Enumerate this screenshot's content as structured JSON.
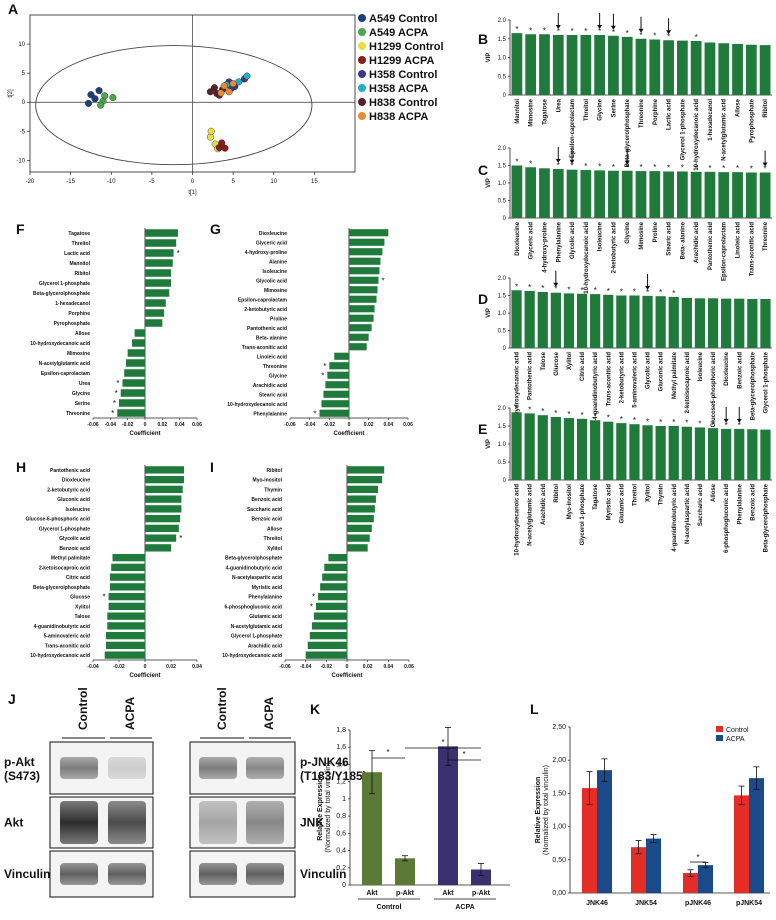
{
  "panel_labels": [
    "A",
    "B",
    "C",
    "D",
    "E",
    "F",
    "G",
    "H",
    "I",
    "J",
    "K",
    "L"
  ],
  "chart_data": [
    {
      "panel": "A",
      "type": "scatter",
      "xlabel": "t[1]",
      "ylabel": "t[2]",
      "xlim": [
        -20,
        20
      ],
      "ylim": [
        -12,
        15
      ],
      "xticks": [
        "-20",
        "-15",
        "-10",
        "-5",
        "0",
        "5",
        "10",
        "15"
      ],
      "yticks": [
        "-10",
        "-5",
        "0",
        "5",
        "10"
      ],
      "legend_position": "right",
      "series": [
        {
          "name": "A549 Control",
          "color": "#1b3f7a",
          "points": [
            [
              -12.5,
              1.3
            ],
            [
              -12,
              0.6
            ],
            [
              -11.5,
              2
            ],
            [
              -12.8,
              -0.2
            ]
          ]
        },
        {
          "name": "A549 ACPA",
          "color": "#4ca84a",
          "points": [
            [
              -11,
              0.2
            ],
            [
              -9.8,
              0.8
            ],
            [
              -11.3,
              -0.5
            ],
            [
              -10.8,
              1.1
            ]
          ]
        },
        {
          "name": "H1299 Control",
          "color": "#e8e040",
          "points": [
            [
              2.2,
              -6
            ],
            [
              2.8,
              -7.2
            ],
            [
              2.3,
              -5
            ],
            [
              3.1,
              -8
            ]
          ]
        },
        {
          "name": "H1299 ACPA",
          "color": "#8a1c1c",
          "points": [
            [
              3.3,
              -7.8
            ],
            [
              3.6,
              -7
            ],
            [
              4,
              -7.9
            ],
            [
              3.3,
              1.2
            ]
          ]
        },
        {
          "name": "H358 Control",
          "color": "#3a3a8c",
          "points": [
            [
              4.5,
              3.5
            ],
            [
              5.2,
              2.7
            ],
            [
              6.4,
              4
            ],
            [
              4.8,
              2.4
            ]
          ]
        },
        {
          "name": "H358 ACPA",
          "color": "#22b0c8",
          "points": [
            [
              5.7,
              3.5
            ],
            [
              6.7,
              4.5
            ],
            [
              4.2,
              3
            ]
          ]
        },
        {
          "name": "H838 Control",
          "color": "#5b1f2b",
          "points": [
            [
              2.2,
              1.8
            ],
            [
              3.7,
              2.2
            ],
            [
              3,
              1.5
            ],
            [
              2.7,
              2.5
            ]
          ]
        },
        {
          "name": "H838 ACPA",
          "color": "#e88a30",
          "points": [
            [
              4.5,
              1.8
            ],
            [
              3.9,
              2.8
            ],
            [
              5,
              3.2
            ],
            [
              3.5,
              1.6
            ]
          ]
        }
      ]
    },
    {
      "panel": "B",
      "type": "bar",
      "ylabel": "VIP",
      "ylim": [
        0,
        2
      ],
      "yticks": [
        "0",
        "0.5",
        "1.0",
        "1.5",
        "2.0"
      ],
      "categories": [
        "Mannitol",
        "Mimosine",
        "Tagatose",
        "Urea",
        "Epsilon-caprolactam",
        "Threitol",
        "Glycine",
        "Serine",
        "Beta-glycerolphosphate",
        "Threonine",
        "Porphine",
        "Lactic acid",
        "Glycerol 1-phosphate",
        "10-hydroxydecanoic acid",
        "1-hexadecanol",
        "N-acetylglutamic acid",
        "Allose",
        "Pyrophosphate",
        "Ribitol"
      ],
      "values": [
        1.65,
        1.62,
        1.62,
        1.6,
        1.6,
        1.6,
        1.6,
        1.58,
        1.55,
        1.5,
        1.48,
        1.46,
        1.45,
        1.44,
        1.4,
        1.38,
        1.36,
        1.34,
        1.33
      ],
      "stars": [
        1,
        1,
        1,
        1,
        1,
        1,
        1,
        1,
        1,
        1,
        1,
        1,
        0,
        1,
        0,
        0,
        0,
        0,
        0
      ],
      "arrows": [
        0,
        0,
        0,
        1,
        0,
        0,
        1,
        1,
        0,
        1,
        0,
        1,
        0,
        0,
        0,
        0,
        0,
        0,
        0
      ]
    },
    {
      "panel": "C",
      "type": "bar",
      "ylabel": "VIP",
      "ylim": [
        0,
        2
      ],
      "yticks": [
        "0",
        "0.5",
        "1.0",
        "1.5",
        "2.0"
      ],
      "categories": [
        "Dioxleucine",
        "Glyceric acid",
        "4-hydroxy-proline",
        "Phenylalanine",
        "Glycolic acid",
        "10-hydroxydecanoic acid",
        "Isoleucine",
        "2-ketobutyric acid",
        "Glycine",
        "Mimosine",
        "Proline",
        "Stearic acid",
        "Beta- alanine",
        "Arachidic acid",
        "Pantothenic acid",
        "Epsilon-caprolactam",
        "Linoleic acid",
        "Trans-aconitic acid",
        "Threonine"
      ],
      "values": [
        1.5,
        1.45,
        1.42,
        1.4,
        1.38,
        1.37,
        1.36,
        1.35,
        1.35,
        1.34,
        1.34,
        1.33,
        1.33,
        1.32,
        1.32,
        1.31,
        1.31,
        1.3,
        1.3
      ],
      "stars": [
        1,
        1,
        0,
        1,
        1,
        1,
        1,
        1,
        1,
        1,
        1,
        1,
        1,
        1,
        1,
        1,
        1,
        1,
        1
      ],
      "arrows": [
        0,
        0,
        0,
        1,
        1,
        0,
        0,
        0,
        1,
        0,
        0,
        0,
        0,
        0,
        0,
        0,
        0,
        0,
        1
      ]
    },
    {
      "panel": "D",
      "type": "bar",
      "ylabel": "VIP",
      "ylim": [
        0,
        2
      ],
      "yticks": [
        "0",
        "0.5",
        "1.0",
        "1.5",
        "2.0"
      ],
      "categories": [
        "10-hydroxydecanoic acid",
        "Pantothenic acid",
        "Talose",
        "Glucose",
        "Xylitol",
        "Citric acid",
        "4-guanidinobutyric acid",
        "Trans-aconitic acid",
        "2-ketobutyric acid",
        "5-aminovaleric acid",
        "Glycolic acid",
        "Gluconic acid",
        "Methyl palmitate",
        "2-ketoisocaproic acid",
        "Isoleucine",
        "Glucose6-phosphoric acid",
        "Dioxleucine",
        "Benzoic acid",
        "Beta-glycerolphosphate",
        "Glycerol 1-phosphate"
      ],
      "values": [
        1.65,
        1.63,
        1.6,
        1.58,
        1.56,
        1.55,
        1.54,
        1.52,
        1.5,
        1.5,
        1.49,
        1.48,
        1.46,
        1.43,
        1.42,
        1.42,
        1.41,
        1.41,
        1.4,
        1.4
      ],
      "stars": [
        1,
        1,
        1,
        1,
        1,
        1,
        1,
        1,
        1,
        1,
        1,
        1,
        1,
        0,
        0,
        0,
        0,
        0,
        0,
        0
      ],
      "arrows": [
        0,
        0,
        0,
        1,
        0,
        0,
        0,
        0,
        0,
        0,
        1,
        0,
        0,
        0,
        0,
        0,
        0,
        0,
        0,
        0
      ]
    },
    {
      "panel": "E",
      "type": "bar",
      "ylabel": "VIP",
      "ylim": [
        0,
        2
      ],
      "yticks": [
        "0",
        "0.5",
        "1.0",
        "1.5",
        "2.0"
      ],
      "categories": [
        "10-hydroxydecanoic acid",
        "N-acetylglutamic acid",
        "Arachidic acid",
        "Ribitol",
        "Myo-inositol",
        "Glycerol 1-phosphate",
        "Tagatose",
        "Myristic acid",
        "Glutamic acid",
        "Threitol",
        "Xylitol",
        "Thymin",
        "4-guanidinobutyric acid",
        "N-acetylaspartic acid",
        "Saccharic acid",
        "Allose",
        "6-phosphogluconic acid",
        "Phenylalanine",
        "Benzoic acid",
        "Beta-glycerolphosphate"
      ],
      "values": [
        1.88,
        1.85,
        1.8,
        1.75,
        1.72,
        1.7,
        1.66,
        1.62,
        1.58,
        1.55,
        1.52,
        1.5,
        1.5,
        1.48,
        1.46,
        1.44,
        1.42,
        1.42,
        1.41,
        1.4
      ],
      "stars": [
        1,
        1,
        1,
        1,
        1,
        1,
        1,
        1,
        1,
        1,
        1,
        1,
        1,
        1,
        1,
        1,
        1,
        1,
        0,
        0
      ],
      "arrows": [
        0,
        0,
        0,
        0,
        0,
        0,
        0,
        0,
        0,
        0,
        0,
        0,
        0,
        0,
        0,
        0,
        1,
        1,
        0,
        0
      ]
    },
    {
      "panel": "F",
      "type": "hbar",
      "xlabel": "Coefficient",
      "xlim": [
        -0.06,
        0.06
      ],
      "xticks": [
        "-0.06",
        "-0.04",
        "-0.02",
        "0",
        "0.02",
        "0.04",
        "0.06"
      ],
      "categories": [
        "Tagatose",
        "Threitol",
        "Lactic acid",
        "Mannitol",
        "Ribitol",
        "Glycerol 1-phosphate",
        "Beta-glycerolphosphate",
        "1-hexadecanol",
        "Porphine",
        "Pyrophosphate",
        "Allose",
        "10-hydroxydecanoic acid",
        "Mimosine",
        "N-acetylglutamic acid",
        "Epsilon-caprolactam",
        "Urea",
        "Glycine",
        "Serine",
        "Threonine"
      ],
      "values": [
        0.038,
        0.036,
        0.033,
        0.032,
        0.03,
        0.03,
        0.028,
        0.024,
        0.022,
        0.02,
        -0.012,
        -0.015,
        -0.02,
        -0.022,
        -0.024,
        -0.026,
        -0.028,
        -0.03,
        -0.032
      ],
      "stars": [
        0,
        0,
        1,
        0,
        0,
        0,
        0,
        0,
        0,
        0,
        0,
        0,
        0,
        0,
        0,
        1,
        1,
        1,
        1
      ]
    },
    {
      "panel": "G",
      "type": "hbar",
      "xlabel": "Coefficient",
      "xlim": [
        -0.06,
        0.06
      ],
      "xticks": [
        "-0.06",
        "-0.04",
        "-0.02",
        "0",
        "0.02",
        "0.04",
        "0.06"
      ],
      "categories": [
        "Dioxleucine",
        "Glyceric acid",
        "4-hydroxy-proline",
        "Alanine",
        "Isoleucine",
        "Glycolic acid",
        "Mimosine",
        "Epsilon-caprolactam",
        "2-ketobutyric acid",
        "Proline",
        "Pantothenic acid",
        "Beta- alanine",
        "Trans-aconitic acid",
        "Linoleic acid",
        "Threonine",
        "Glycine",
        "Arachidic acid",
        "Stearic acid",
        "10-hydroxydecanoic acid",
        "Phenylalanine"
      ],
      "values": [
        0.04,
        0.036,
        0.034,
        0.032,
        0.031,
        0.03,
        0.029,
        0.028,
        0.026,
        0.025,
        0.023,
        0.02,
        0.018,
        -0.015,
        -0.02,
        -0.022,
        -0.024,
        -0.026,
        -0.028,
        -0.03
      ],
      "stars": [
        0,
        0,
        0,
        0,
        0,
        1,
        0,
        0,
        0,
        0,
        0,
        0,
        0,
        0,
        1,
        1,
        0,
        0,
        0,
        1
      ]
    },
    {
      "panel": "H",
      "type": "hbar",
      "xlabel": "Coefficient",
      "xlim": [
        -0.04,
        0.04
      ],
      "xticks": [
        "-0.04",
        "-0.02",
        "0",
        "0.02",
        "0.04"
      ],
      "categories": [
        "Pantothenic acid",
        "Dioxleucine",
        "2-ketobutyric acid",
        "Gluconic acid",
        "Isoleucine",
        "Glucose-6-phosphoric acid",
        "Glycerol 1-phosphate",
        "Glycolic acid",
        "Benzoic acid",
        "Methyl palmitate",
        "2-ketoisocaproic acid",
        "Citric acid",
        "Beta-glycerolphosphate",
        "Glucose",
        "Xylitol",
        "Talose",
        "4-guanidinobutyric acid",
        "5-aminovaleric acid",
        "Trans-aconitic acid",
        "10-hydroxydecanoic acid"
      ],
      "values": [
        0.03,
        0.03,
        0.029,
        0.028,
        0.028,
        0.027,
        0.026,
        0.024,
        0.02,
        -0.025,
        -0.026,
        -0.027,
        -0.027,
        -0.028,
        -0.028,
        -0.029,
        -0.029,
        -0.03,
        -0.03,
        -0.031
      ],
      "stars": [
        0,
        0,
        0,
        0,
        0,
        0,
        0,
        1,
        0,
        0,
        0,
        0,
        0,
        1,
        0,
        0,
        0,
        0,
        0,
        0
      ]
    },
    {
      "panel": "I",
      "type": "hbar",
      "xlabel": "Coefficient",
      "xlim": [
        -0.06,
        0.06
      ],
      "xticks": [
        "-0.06",
        "-0.04",
        "-0.02",
        "0",
        "0.02",
        "0.04",
        "0.06"
      ],
      "categories": [
        "Ribitol",
        "Myo-inositol",
        "Thymin",
        "Benzoic acid",
        "Saccharic acid",
        "Benzoic acid",
        "Allose",
        "Threitol",
        "Xylitol",
        "Beta-glycerolphosphate",
        "4-guanidinobutyric acid",
        "N-acetylaspartic acid",
        "Myristic acid",
        "Phenylalanine",
        "6-phosphogluconic acid",
        "Glutamic acid",
        "N-acetylglutamic acid",
        "Glycerol 1-phosphate",
        "Arachidic acid",
        "10-hydroxydecanoic acid"
      ],
      "values": [
        0.036,
        0.034,
        0.03,
        0.028,
        0.027,
        0.026,
        0.024,
        0.022,
        0.02,
        -0.018,
        -0.022,
        -0.024,
        -0.026,
        -0.028,
        -0.03,
        -0.032,
        -0.034,
        -0.036,
        -0.038,
        -0.04
      ],
      "stars": [
        0,
        0,
        0,
        0,
        0,
        0,
        0,
        0,
        0,
        0,
        0,
        0,
        0,
        1,
        1,
        0,
        0,
        0,
        0,
        0
      ]
    },
    {
      "panel": "K",
      "type": "bar",
      "ylabel": "Relative Expression\n(Normalized by total vinculin)",
      "ylim": [
        0,
        1.8
      ],
      "yticks": [
        "0",
        "0,2",
        "0,4",
        "0,6",
        "0,8",
        "1",
        "1,2",
        "1,4",
        "1,6",
        "1,8"
      ],
      "categories": [
        "Akt",
        "p-Akt",
        "Akt",
        "p-Akt"
      ],
      "groups": [
        "Control",
        "ACPA"
      ],
      "values": [
        1.31,
        0.31,
        1.61,
        0.18
      ],
      "errors": [
        0.25,
        0.03,
        0.22,
        0.07
      ],
      "colors": [
        "#5a7a35",
        "#5a7a35",
        "#3b3170",
        "#3b3170"
      ]
    },
    {
      "panel": "L",
      "type": "bar",
      "ylabel": "Relative Expression\n(Normalized by total vinculin)",
      "ylim": [
        0,
        2.5
      ],
      "yticks": [
        "0,00",
        "0,50",
        "1,00",
        "1,50",
        "2,00",
        "2,50"
      ],
      "categories": [
        "JNK46",
        "JNK54",
        "pJNK46",
        "pJNK54"
      ],
      "series": [
        {
          "name": "Control",
          "color": "#e52d27",
          "values": [
            1.58,
            0.69,
            0.3,
            1.47
          ],
          "errors": [
            0.25,
            0.1,
            0.05,
            0.14
          ]
        },
        {
          "name": "ACPA",
          "color": "#1b4a8a",
          "values": [
            1.85,
            0.82,
            0.42,
            1.73
          ],
          "errors": [
            0.17,
            0.06,
            0.04,
            0.17
          ]
        }
      ]
    }
  ],
  "blot": {
    "columns": [
      "Control",
      "ACPA",
      "Control",
      "ACPA"
    ],
    "left_rows": [
      {
        "label": "p-Akt",
        "sublabel": "(S473)"
      },
      {
        "label": "Akt",
        "sublabel": ""
      },
      {
        "label": "Vinculin",
        "sublabel": ""
      }
    ],
    "right_rows": [
      {
        "label": "p-JNK46",
        "sublabel": "(T183/Y185)"
      },
      {
        "label": "JNK",
        "sublabel": ""
      },
      {
        "label": "Vinculin",
        "sublabel": ""
      }
    ]
  }
}
